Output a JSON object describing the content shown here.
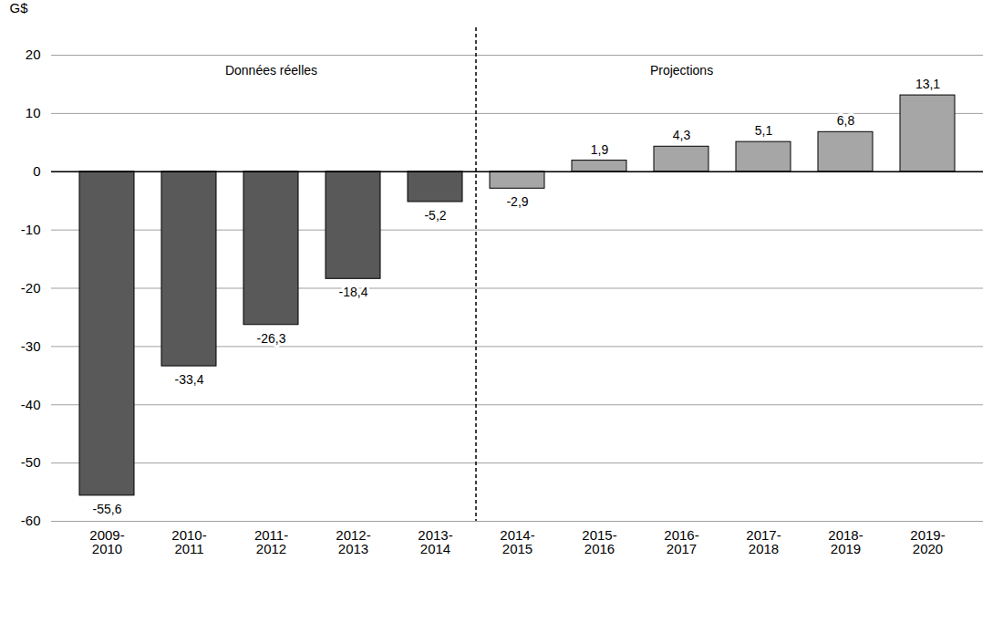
{
  "chart_data": {
    "type": "bar",
    "y_label": "G$",
    "categories": [
      "2009-2010",
      "2010-2011",
      "2011-2012",
      "2012-2013",
      "2013-2014",
      "2014-2015",
      "2015-2016",
      "2016-2017",
      "2017-2018",
      "2018-2019",
      "2019-2020"
    ],
    "values": [
      -55.6,
      -33.4,
      -26.3,
      -18.4,
      -5.2,
      -2.9,
      1.9,
      4.3,
      5.1,
      6.8,
      13.1
    ],
    "value_labels": [
      "-55,6",
      "-33,4",
      "-26,3",
      "-18,4",
      "-5,2",
      "-2,9",
      "1,9",
      "4,3",
      "5,1",
      "6,8",
      "13,1"
    ],
    "colors": [
      "#595959",
      "#595959",
      "#595959",
      "#595959",
      "#595959",
      "#a6a6a6",
      "#a6a6a6",
      "#a6a6a6",
      "#a6a6a6",
      "#a6a6a6",
      "#a6a6a6"
    ],
    "ylim": [
      -60,
      20
    ],
    "yticks": [
      -60,
      -50,
      -40,
      -30,
      -20,
      -10,
      0,
      10,
      20
    ],
    "grid": true,
    "data_labels": true,
    "annotations": [
      {
        "text": "Données réelles",
        "categories": [
          "2009-2010",
          "2013-2014"
        ]
      },
      {
        "text": "Projections",
        "categories": [
          "2014-2015",
          "2019-2020"
        ]
      }
    ]
  }
}
